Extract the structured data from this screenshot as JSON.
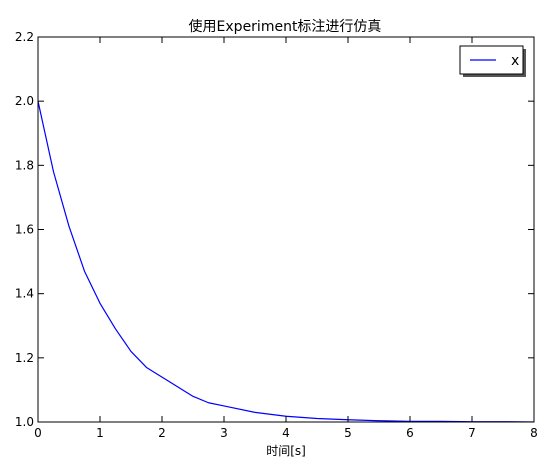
{
  "chart_data": {
    "type": "line",
    "title": "使用Experiment标注进行仿真",
    "xlabel": "时间[s]",
    "ylabel": "",
    "xlim": [
      0,
      8
    ],
    "ylim": [
      1.0,
      2.2
    ],
    "xticks": [
      "0",
      "1",
      "2",
      "3",
      "4",
      "5",
      "6",
      "7",
      "8"
    ],
    "yticks": [
      "1.0",
      "1.2",
      "1.4",
      "1.6",
      "1.8",
      "2.0",
      "2.2"
    ],
    "grid": false,
    "legend": {
      "position": "top-right",
      "entries": [
        "x"
      ]
    },
    "series": [
      {
        "name": "x",
        "color": "#0000ff",
        "x": [
          0,
          0.25,
          0.5,
          0.75,
          1.0,
          1.25,
          1.5,
          1.75,
          2.0,
          2.25,
          2.5,
          2.75,
          3.0,
          3.5,
          4.0,
          4.5,
          5.0,
          5.5,
          6.0,
          6.5,
          7.0,
          7.5,
          8.0
        ],
        "y": [
          2.0,
          1.78,
          1.61,
          1.47,
          1.37,
          1.29,
          1.22,
          1.17,
          1.14,
          1.11,
          1.08,
          1.06,
          1.05,
          1.03,
          1.018,
          1.011,
          1.007,
          1.004,
          1.002,
          1.002,
          1.001,
          1.001,
          1.0
        ]
      }
    ]
  }
}
